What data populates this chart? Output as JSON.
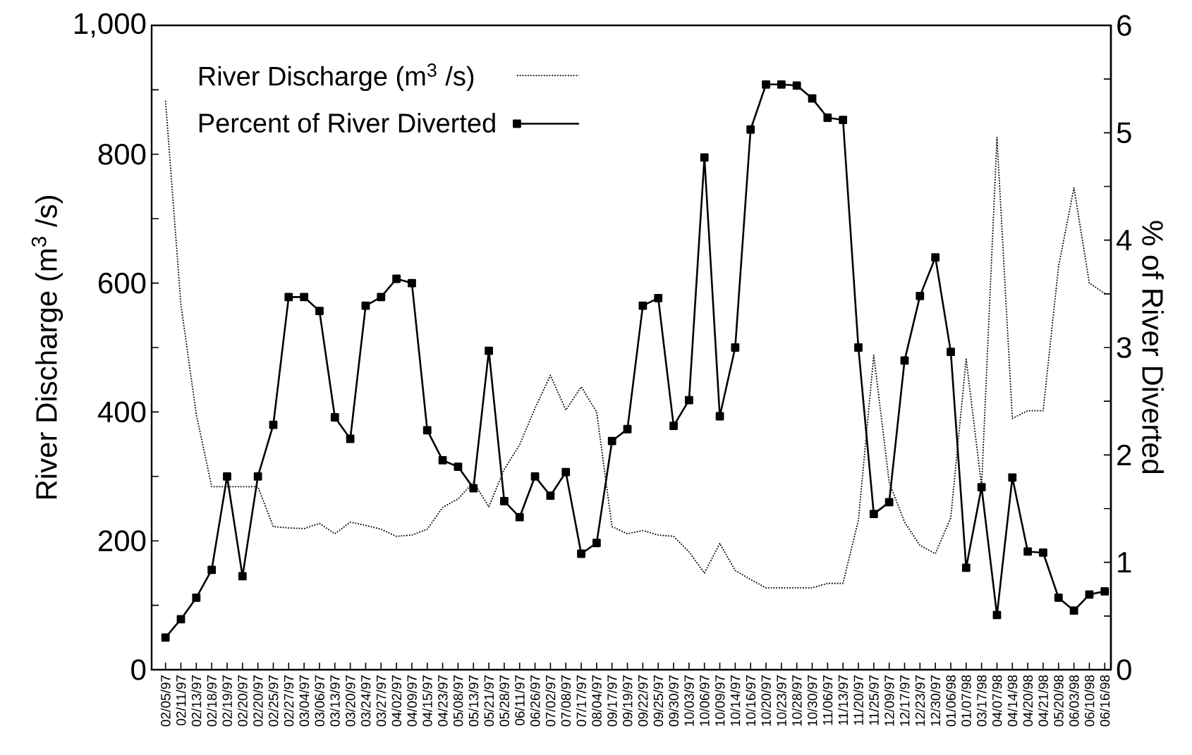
{
  "chart_data": {
    "type": "line",
    "categories": [
      "02/05/97",
      "02/11/97",
      "02/13/97",
      "02/18/97",
      "02/19/97",
      "02/20/97",
      "02/20/97",
      "02/25/97",
      "02/27/97",
      "03/04/97",
      "03/06/97",
      "03/13/97",
      "03/20/97",
      "03/24/97",
      "03/27/97",
      "04/02/97",
      "04/09/97",
      "04/15/97",
      "04/23/97",
      "05/08/97",
      "05/13/97",
      "05/21/97",
      "05/28/97",
      "06/11/97",
      "06/26/97",
      "07/02/97",
      "07/08/97",
      "07/17/97",
      "08/04/97",
      "09/17/97",
      "09/19/97",
      "09/22/97",
      "09/25/97",
      "09/30/97",
      "10/03/97",
      "10/06/97",
      "10/09/97",
      "10/14/97",
      "10/16/97",
      "10/20/97",
      "10/23/97",
      "10/28/97",
      "10/30/97",
      "11/06/97",
      "11/13/97",
      "11/20/97",
      "11/25/97",
      "12/09/97",
      "12/17/97",
      "12/23/97",
      "12/30/97",
      "01/06/98",
      "01/07/98",
      "03/17/98",
      "04/07/98",
      "04/14/98",
      "04/20/98",
      "04/21/98",
      "05/20/98",
      "06/03/98",
      "06/10/98",
      "06/16/98"
    ],
    "series": [
      {
        "name": "River Discharge (m$^{3}$ /s)",
        "color": "#000000",
        "line_style": "dotted",
        "marker": "none",
        "values": [
          883,
          567,
          396,
          284,
          284,
          284,
          284,
          222,
          220,
          219,
          227,
          211,
          229,
          224,
          218,
          207,
          209,
          218,
          252,
          265,
          291,
          253,
          311,
          349,
          406,
          457,
          403,
          439,
          400,
          222,
          211,
          216,
          209,
          207,
          183,
          150,
          196,
          154,
          140,
          127,
          127,
          127,
          127,
          134,
          134,
          232,
          488,
          291,
          229,
          193,
          180,
          236,
          482,
          285,
          826,
          390,
          402,
          402,
          626,
          748,
          600,
          584
        ]
      },
      {
        "name": "Percent of River Diverted",
        "color": "#000000",
        "line_style": "solid",
        "marker": "square",
        "axis": "y2",
        "values": [
          0.3,
          0.47,
          0.67,
          0.93,
          1.8,
          0.87,
          1.8,
          2.28,
          3.47,
          3.47,
          3.34,
          2.35,
          2.15,
          3.39,
          3.47,
          3.64,
          3.6,
          2.23,
          1.95,
          1.89,
          1.69,
          2.97,
          1.57,
          1.42,
          1.8,
          1.62,
          1.84,
          1.08,
          1.18,
          2.13,
          2.24,
          3.39,
          3.46,
          2.27,
          2.51,
          4.77,
          2.36,
          3.0,
          5.03,
          5.45,
          5.45,
          5.44,
          5.32,
          5.14,
          5.12,
          3.0,
          1.45,
          1.56,
          2.88,
          3.48,
          3.84,
          2.96,
          0.95,
          1.7,
          0.51,
          1.79,
          1.1,
          1.09,
          0.67,
          0.55,
          0.7,
          0.73
        ]
      }
    ],
    "ylabel": "River Discharge (m$^{3}$ /s)",
    "y2label": "% of River Diverted",
    "ylim": [
      0,
      1000
    ],
    "yticks": [
      0,
      {
        "value": 100,
        "label": null
      },
      200,
      {
        "value": 300,
        "label": null
      },
      400,
      {
        "value": 500,
        "label": null
      },
      600,
      {
        "value": 700,
        "label": null
      },
      800,
      {
        "value": 900,
        "label": null
      },
      {
        "value": 1000,
        "label": "1,000"
      }
    ],
    "y2lim": [
      0,
      6
    ],
    "y2ticks": [
      0,
      {
        "value": 0.5,
        "label": null
      },
      1,
      {
        "value": 1.5,
        "label": null
      },
      2,
      {
        "value": 2.5,
        "label": null
      },
      3,
      {
        "value": 3.5,
        "label": null
      },
      4,
      {
        "value": 4.5,
        "label": null
      },
      5,
      {
        "value": 5.5,
        "label": null
      },
      6
    ],
    "legend": "top left"
  }
}
